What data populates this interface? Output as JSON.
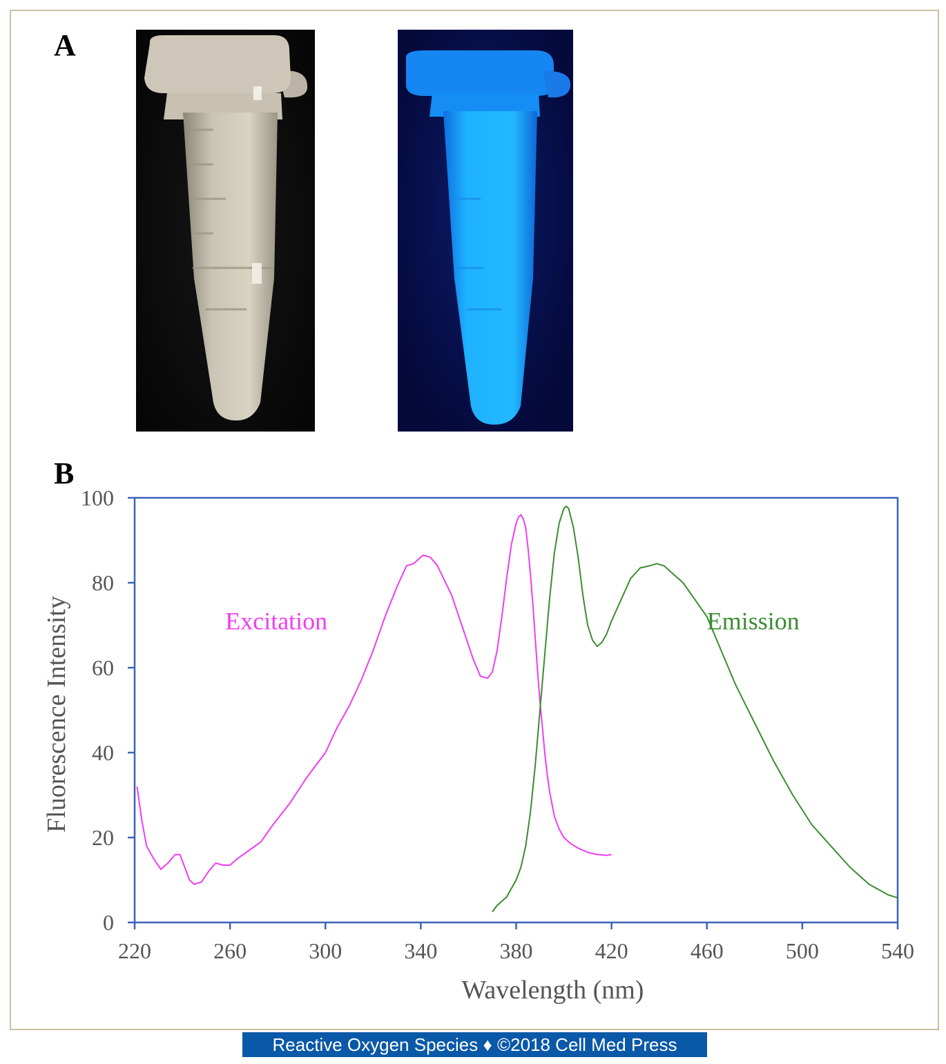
{
  "panels": {
    "a_label": "A",
    "b_label": "B"
  },
  "photos": [
    {
      "name": "tube-under-visible-light",
      "description_icon": "microcentrifuge-tube"
    },
    {
      "name": "tube-under-uv-light",
      "description_icon": "microcentrifuge-tube-fluorescent"
    }
  ],
  "colors": {
    "frame": "#cbbf9e",
    "axis": "#3a63b8",
    "excitation": "#f03cf0",
    "emission": "#3a8c2e",
    "footer_bg": "#0a58a8",
    "uv_glow": "#1fa8ff"
  },
  "chart_data": {
    "type": "line",
    "title": "",
    "xlabel": "Wavelength  (nm)",
    "ylabel": "Fluorescence  Intensity",
    "xlim": [
      220,
      540
    ],
    "ylim": [
      0,
      100
    ],
    "xticks": [
      220,
      260,
      300,
      340,
      380,
      420,
      460,
      500,
      540
    ],
    "yticks": [
      0,
      20,
      40,
      60,
      80,
      100
    ],
    "grid": false,
    "legend": "inline labels",
    "series": [
      {
        "name": "Excitation",
        "x": [
          221,
          223,
          225,
          228,
          231,
          234,
          237,
          239,
          241,
          243,
          245,
          248,
          251,
          254,
          257,
          260,
          263,
          268,
          273,
          278,
          285,
          292,
          300,
          305,
          310,
          315,
          320,
          325,
          330,
          334,
          337,
          341,
          344,
          347,
          350,
          353,
          356,
          359,
          362,
          365,
          368,
          370,
          372,
          374,
          376,
          378,
          380,
          381,
          382,
          383,
          384,
          385,
          386,
          387,
          388,
          389,
          390,
          391,
          392,
          393,
          394,
          395,
          396,
          398,
          400,
          403,
          406,
          410,
          414,
          418,
          420
        ],
        "y": [
          32,
          24,
          18,
          15,
          12.5,
          14,
          16,
          16,
          13,
          10,
          9,
          9.5,
          12,
          14,
          13.5,
          13.5,
          15,
          17,
          19,
          23,
          28,
          34,
          40,
          46,
          51,
          57,
          64,
          72,
          79,
          84,
          84.5,
          86.5,
          86,
          84,
          80.5,
          77,
          72,
          67,
          62,
          58,
          57.5,
          59,
          64,
          72,
          81,
          89,
          94,
          95.5,
          96,
          95,
          93,
          88,
          82,
          75,
          67,
          59,
          52,
          46,
          40,
          35,
          31,
          28,
          25,
          22,
          20,
          18.5,
          17.5,
          16.5,
          16,
          15.8,
          16
        ]
      },
      {
        "name": "Emission",
        "x": [
          370,
          372,
          374,
          376,
          378,
          380,
          382,
          384,
          386,
          388,
          390,
          392,
          394,
          396,
          398,
          400,
          401,
          402,
          404,
          406,
          408,
          410,
          412,
          414,
          416,
          418,
          420,
          424,
          428,
          432,
          436,
          439,
          442,
          446,
          450,
          455,
          460,
          466,
          472,
          480,
          488,
          496,
          504,
          512,
          520,
          528,
          536,
          540
        ],
        "y": [
          2.5,
          4,
          5,
          6,
          8,
          10,
          13,
          18,
          26,
          37,
          50,
          63,
          76,
          87,
          94,
          97.5,
          98,
          97.5,
          93,
          86,
          77,
          70,
          66.5,
          65,
          66,
          68,
          71,
          76,
          81,
          83.5,
          84,
          84.5,
          84,
          82,
          80,
          76,
          72,
          64,
          56,
          47,
          38,
          30,
          23,
          18,
          13,
          9,
          6.5,
          5.8
        ]
      }
    ],
    "annotations": [
      {
        "text": "Excitation",
        "series": "Excitation"
      },
      {
        "text": "Emission",
        "series": "Emission"
      }
    ]
  },
  "footer": {
    "text": "Reactive Oxygen Species ♦ ©2018 Cell Med Press"
  }
}
